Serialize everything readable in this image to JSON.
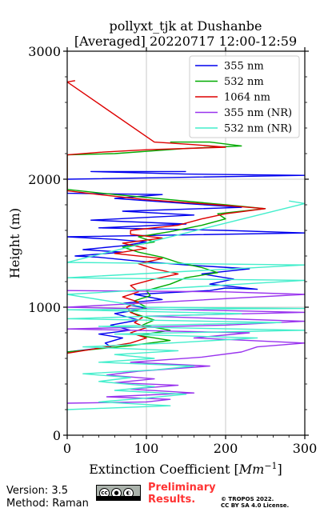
{
  "chart_data": {
    "type": "line",
    "title_line1": "pollyxt_tjk at Dushanbe",
    "title_line2": "[Averaged] 20220717 12:00-12:59",
    "xlabel": "Extinction Coefficient [Mm⁻¹]",
    "ylabel": "Height (m)",
    "xlim": [
      0,
      300
    ],
    "ylim": [
      0,
      3000
    ],
    "x_ticks": [
      0,
      100,
      200,
      300
    ],
    "y_ticks": [
      0,
      1000,
      2000,
      3000
    ],
    "grid": true,
    "legend_position": "top-right",
    "series": [
      {
        "name": "355 nm",
        "color": "#0000ee",
        "points": [
          [
            0,
            650
          ],
          [
            55,
            690
          ],
          [
            48,
            720
          ],
          [
            70,
            760
          ],
          [
            40,
            790
          ],
          [
            80,
            820
          ],
          [
            55,
            860
          ],
          [
            90,
            900
          ],
          [
            60,
            950
          ],
          [
            100,
            990
          ],
          [
            70,
            1030
          ],
          [
            120,
            1060
          ],
          [
            85,
            1100
          ],
          [
            180,
            1130
          ],
          [
            200,
            1150
          ],
          [
            240,
            1140
          ],
          [
            180,
            1180
          ],
          [
            210,
            1220
          ],
          [
            170,
            1260
          ],
          [
            230,
            1300
          ],
          [
            150,
            1330
          ],
          [
            90,
            1360
          ],
          [
            40,
            1390
          ],
          [
            10,
            1400
          ],
          [
            70,
            1430
          ],
          [
            20,
            1450
          ],
          [
            70,
            1480
          ],
          [
            100,
            1510
          ],
          [
            60,
            1530
          ],
          [
            0,
            1550
          ],
          [
            300,
            1580
          ],
          [
            200,
            1600
          ],
          [
            40,
            1620
          ],
          [
            150,
            1650
          ],
          [
            30,
            1680
          ],
          [
            160,
            1720
          ],
          [
            70,
            1750
          ],
          [
            220,
            1780
          ],
          [
            150,
            1810
          ],
          [
            60,
            1850
          ],
          [
            120,
            1880
          ],
          [
            0,
            1890
          ],
          [
            0,
            2000
          ],
          [
            300,
            2030
          ],
          [
            150,
            2040
          ],
          [
            30,
            2060
          ],
          [
            150,
            2060
          ]
        ]
      },
      {
        "name": "532 nm",
        "color": "#00aa00",
        "points": [
          [
            0,
            650
          ],
          [
            80,
            700
          ],
          [
            130,
            740
          ],
          [
            90,
            780
          ],
          [
            130,
            820
          ],
          [
            95,
            860
          ],
          [
            110,
            900
          ],
          [
            80,
            960
          ],
          [
            100,
            1000
          ],
          [
            85,
            1050
          ],
          [
            105,
            1090
          ],
          [
            100,
            1130
          ],
          [
            130,
            1180
          ],
          [
            150,
            1230
          ],
          [
            190,
            1270
          ],
          [
            170,
            1310
          ],
          [
            140,
            1350
          ],
          [
            120,
            1390
          ],
          [
            90,
            1430
          ],
          [
            70,
            1470
          ],
          [
            110,
            1510
          ],
          [
            90,
            1550
          ],
          [
            130,
            1590
          ],
          [
            170,
            1640
          ],
          [
            200,
            1690
          ],
          [
            190,
            1730
          ],
          [
            250,
            1770
          ],
          [
            200,
            1800
          ],
          [
            130,
            1840
          ],
          [
            60,
            1880
          ],
          [
            0,
            1920
          ],
          [
            0,
            2190
          ],
          [
            60,
            2200
          ],
          [
            150,
            2240
          ],
          [
            220,
            2260
          ],
          [
            180,
            2290
          ],
          [
            130,
            2290
          ]
        ]
      },
      {
        "name": "1064 nm",
        "color": "#dd0000",
        "points": [
          [
            0,
            640
          ],
          [
            40,
            680
          ],
          [
            80,
            720
          ],
          [
            100,
            760
          ],
          [
            80,
            800
          ],
          [
            100,
            840
          ],
          [
            85,
            880
          ],
          [
            95,
            920
          ],
          [
            80,
            960
          ],
          [
            75,
            1000
          ],
          [
            90,
            1040
          ],
          [
            70,
            1080
          ],
          [
            90,
            1120
          ],
          [
            80,
            1170
          ],
          [
            110,
            1220
          ],
          [
            140,
            1260
          ],
          [
            110,
            1300
          ],
          [
            90,
            1340
          ],
          [
            120,
            1380
          ],
          [
            60,
            1420
          ],
          [
            100,
            1460
          ],
          [
            70,
            1500
          ],
          [
            120,
            1540
          ],
          [
            80,
            1570
          ],
          [
            80,
            1600
          ],
          [
            140,
            1640
          ],
          [
            170,
            1690
          ],
          [
            200,
            1730
          ],
          [
            250,
            1770
          ],
          [
            190,
            1800
          ],
          [
            100,
            1840
          ],
          [
            40,
            1880
          ],
          [
            0,
            1910
          ],
          [
            0,
            2190
          ],
          [
            40,
            2210
          ],
          [
            100,
            2230
          ],
          [
            200,
            2250
          ],
          [
            160,
            2270
          ],
          [
            110,
            2290
          ],
          [
            0,
            2760
          ],
          [
            10,
            2770
          ]
        ]
      },
      {
        "name": "355 nm (NR)",
        "color": "#9933ee",
        "points": [
          [
            0,
            250
          ],
          [
            100,
            260
          ],
          [
            130,
            280
          ],
          [
            50,
            300
          ],
          [
            160,
            330
          ],
          [
            80,
            360
          ],
          [
            140,
            390
          ],
          [
            60,
            410
          ],
          [
            110,
            440
          ],
          [
            50,
            470
          ],
          [
            90,
            500
          ],
          [
            180,
            540
          ],
          [
            80,
            570
          ],
          [
            170,
            610
          ],
          [
            220,
            650
          ],
          [
            240,
            690
          ],
          [
            300,
            720
          ],
          [
            160,
            760
          ],
          [
            230,
            800
          ],
          [
            0,
            830
          ],
          [
            200,
            860
          ],
          [
            300,
            890
          ],
          [
            100,
            930
          ],
          [
            300,
            960
          ],
          [
            0,
            1000
          ],
          [
            300,
            1100
          ],
          [
            200,
            1120
          ],
          [
            0,
            1130
          ]
        ]
      },
      {
        "name": "532 nm (NR)",
        "color": "#44eecc",
        "points": [
          [
            0,
            200
          ],
          [
            130,
            230
          ],
          [
            40,
            260
          ],
          [
            100,
            290
          ],
          [
            150,
            320
          ],
          [
            60,
            350
          ],
          [
            110,
            380
          ],
          [
            40,
            420
          ],
          [
            80,
            450
          ],
          [
            20,
            480
          ],
          [
            110,
            510
          ],
          [
            160,
            540
          ],
          [
            40,
            570
          ],
          [
            110,
            600
          ],
          [
            60,
            630
          ],
          [
            140,
            660
          ],
          [
            20,
            690
          ],
          [
            130,
            720
          ],
          [
            240,
            760
          ],
          [
            60,
            790
          ],
          [
            300,
            820
          ],
          [
            40,
            850
          ],
          [
            270,
            880
          ],
          [
            0,
            910
          ],
          [
            220,
            950
          ],
          [
            0,
            980
          ],
          [
            300,
            990
          ],
          [
            100,
            1000
          ],
          [
            0,
            1100
          ],
          [
            300,
            1210
          ],
          [
            0,
            1230
          ],
          [
            300,
            1330
          ],
          [
            0,
            1350
          ],
          [
            300,
            1810
          ],
          [
            280,
            1830
          ]
        ]
      }
    ]
  },
  "footer": {
    "version": "Version: 3.5",
    "method": "Method: Raman",
    "preliminary": "Preliminary Results.",
    "copyright_line1": "© TROPOS 2022.",
    "copyright_line2": "CC BY SA 4.0 License.",
    "cc_badge_text": "cc"
  }
}
